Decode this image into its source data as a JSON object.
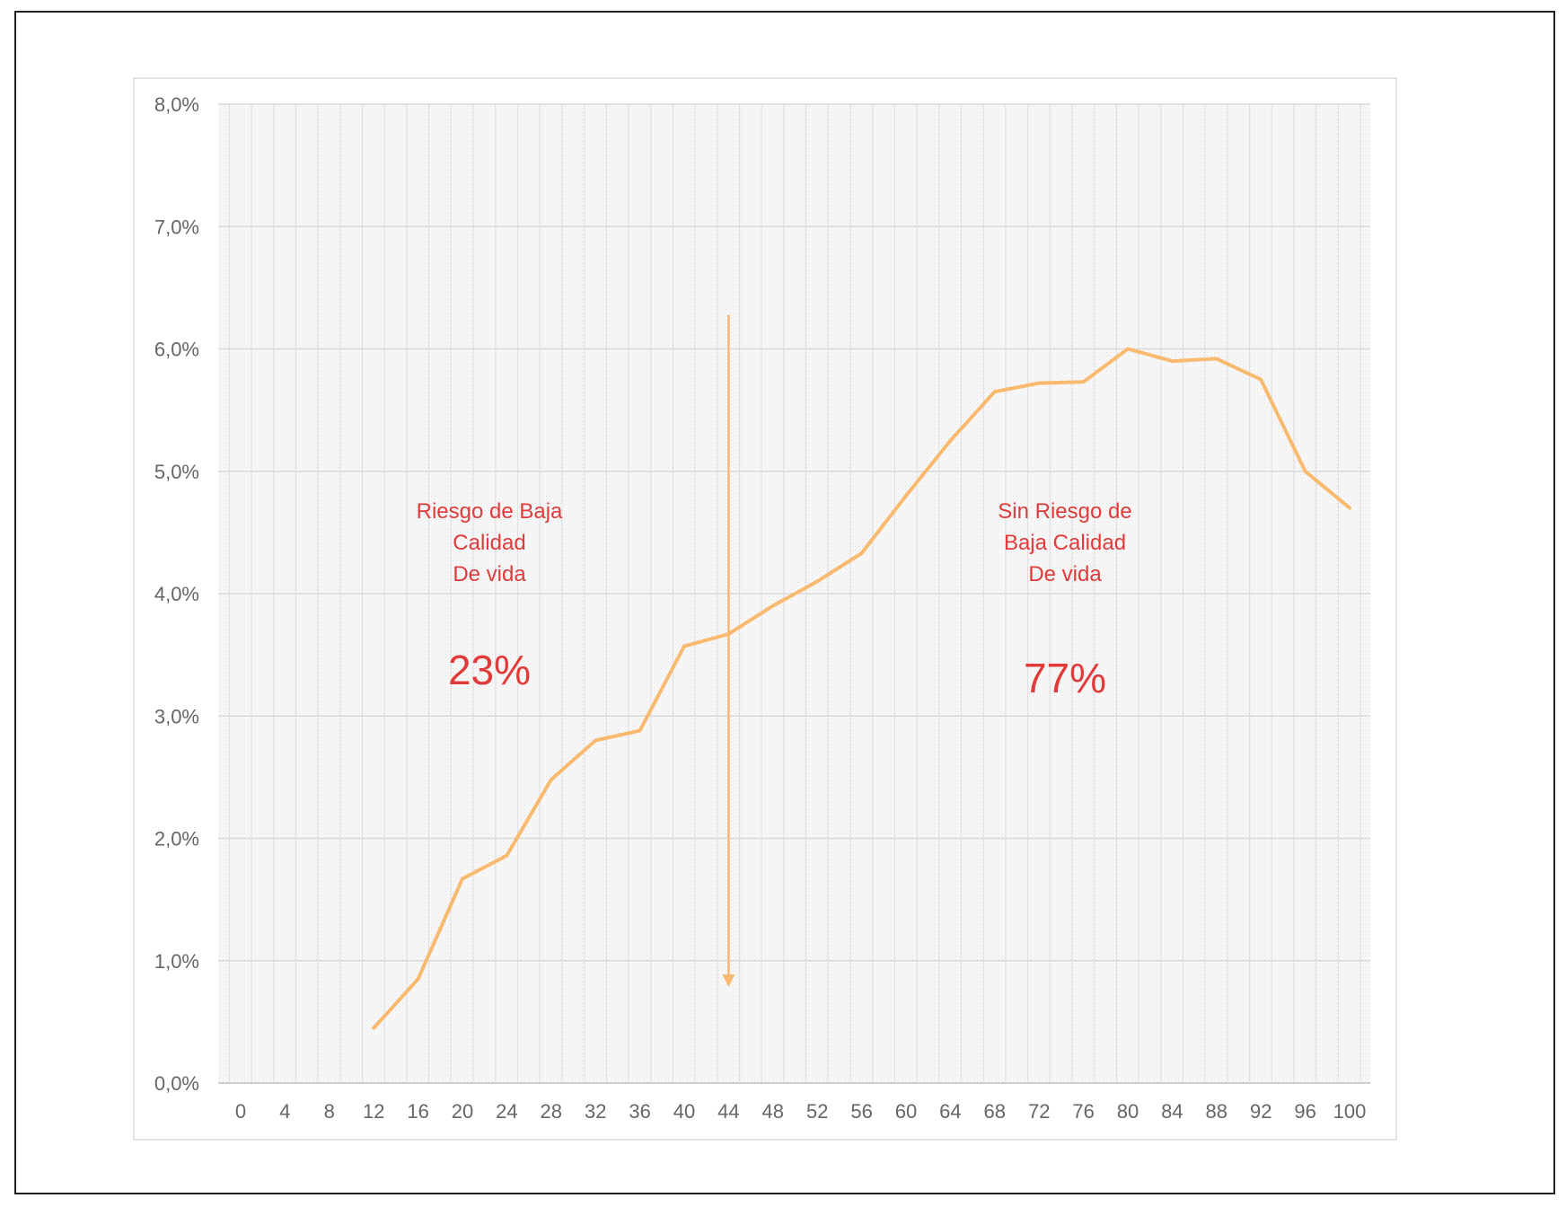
{
  "chart_data": {
    "type": "line",
    "title": "",
    "xlabel": "",
    "ylabel": "",
    "xlim": [
      0,
      100
    ],
    "ylim": [
      0,
      8
    ],
    "x_ticks": [
      0,
      4,
      8,
      12,
      16,
      20,
      24,
      28,
      32,
      36,
      40,
      44,
      48,
      52,
      56,
      60,
      64,
      68,
      72,
      76,
      80,
      84,
      88,
      92,
      96,
      100
    ],
    "y_ticks": [
      {
        "value": 0,
        "label": "0,0%"
      },
      {
        "value": 1,
        "label": "1,0%"
      },
      {
        "value": 2,
        "label": "2,0%"
      },
      {
        "value": 3,
        "label": "3,0%"
      },
      {
        "value": 4,
        "label": "4,0%"
      },
      {
        "value": 5,
        "label": "5,0%"
      },
      {
        "value": 6,
        "label": "6,0%"
      },
      {
        "value": 7,
        "label": "7,0%"
      },
      {
        "value": 8,
        "label": "8,0%"
      }
    ],
    "grid": true,
    "legend": "none",
    "series": [
      {
        "color": "#f9b96e",
        "x": [
          12,
          16,
          20,
          24,
          28,
          32,
          36,
          40,
          44,
          48,
          52,
          56,
          60,
          64,
          68,
          72,
          76,
          80,
          84,
          88,
          92,
          96,
          100
        ],
        "y": [
          0.45,
          0.85,
          1.67,
          1.86,
          2.48,
          2.8,
          2.88,
          3.57,
          3.67,
          3.9,
          4.1,
          4.33,
          4.8,
          5.25,
          5.65,
          5.72,
          5.73,
          6.0,
          5.9,
          5.92,
          5.75,
          5.0,
          4.7
        ]
      }
    ],
    "divider": {
      "x": 44,
      "y_top": 6.28,
      "y_bottom": 0.8,
      "color": "#f9b96e"
    },
    "annotations": [
      {
        "id": "left",
        "lines": [
          "Riesgo de  Baja",
          "Calidad",
          "De vida"
        ],
        "value": "23%",
        "color": "#e03a3a"
      },
      {
        "id": "right",
        "lines": [
          "Sin Riesgo de",
          "Baja Calidad",
          "De vida"
        ],
        "value": "77%",
        "color": "#e03a3a"
      }
    ]
  }
}
